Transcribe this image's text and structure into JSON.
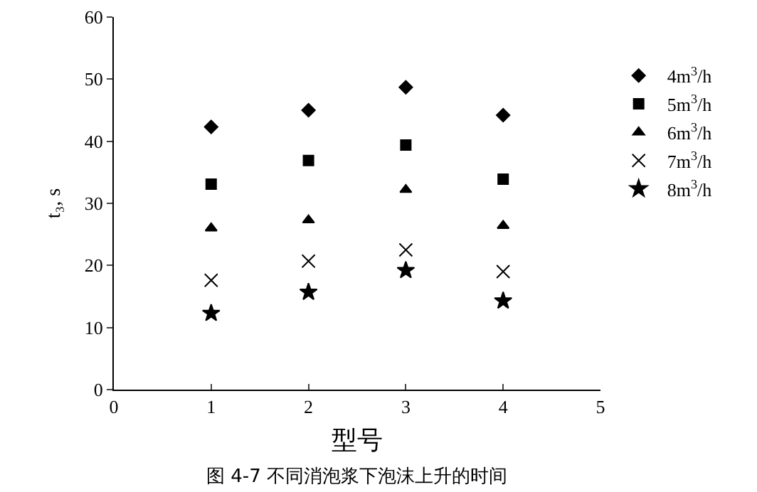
{
  "chart_data": {
    "type": "scatter",
    "xlabel": "型号",
    "ylabel": "t₃, s",
    "x": [
      1,
      2,
      3,
      4
    ],
    "xlim": [
      0,
      5
    ],
    "xticks": [
      0,
      1,
      2,
      3,
      4,
      5
    ],
    "ylim": [
      0,
      60
    ],
    "yticks": [
      0,
      10,
      20,
      30,
      40,
      50,
      60
    ],
    "grid": false,
    "legend": "right",
    "annotations": [
      "图 4-7 不同消泡浆下泡沫上升的时间"
    ],
    "series": [
      {
        "name": "4m$^{3}$/h",
        "color": "#000000",
        "marker": "diamond",
        "values": [
          42.3,
          45.0,
          48.7,
          44.2
        ]
      },
      {
        "name": "5m$^{3}$/h",
        "color": "#000000",
        "marker": "square",
        "values": [
          33.1,
          36.9,
          39.4,
          33.9
        ]
      },
      {
        "name": "6m$^{3}$/h",
        "color": "#000000",
        "marker": "triangle",
        "values": [
          26,
          27.3,
          32.2,
          26.4
        ]
      },
      {
        "name": "7m$^{3}$/h",
        "color": "#000000",
        "marker": "cross",
        "values": [
          17.6,
          20.7,
          22.5,
          19.0
        ]
      },
      {
        "name": "8m$^{3}$/h",
        "color": "#000000",
        "marker": "star",
        "values": [
          12.3,
          15.7,
          19.2,
          14.3
        ]
      }
    ]
  }
}
